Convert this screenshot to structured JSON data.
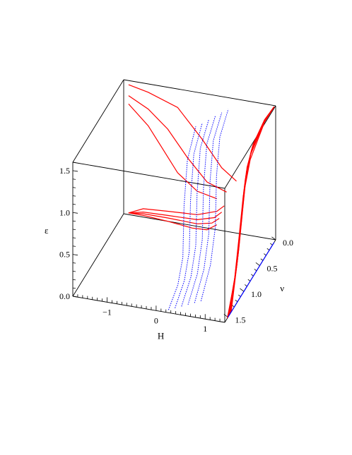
{
  "chart_data": {
    "type": "line",
    "subtype": "3d-curves",
    "title": "",
    "xlabel": "H",
    "ylabel": "ν",
    "zlabel": "ε",
    "xlim": [
      -1.7,
      1.4
    ],
    "ylim": [
      0.0,
      1.6
    ],
    "zlim": [
      0.0,
      1.6
    ],
    "x_ticks": [
      "−1",
      "0",
      "1"
    ],
    "y_ticks": [
      "0.0",
      "0.5",
      "1.0",
      "1.5"
    ],
    "z_ticks": [
      "0.0",
      "0.5",
      "1.0",
      "1.5"
    ],
    "grid": false,
    "series": [
      {
        "projection": "H-ε plane (back wall)",
        "color": "#ff0000",
        "style": "solid",
        "curves": [
          [
            [
              -1.6,
              1.55
            ],
            [
              -1.2,
              1.5
            ],
            [
              -0.6,
              1.38
            ],
            [
              -0.1,
              1.05
            ],
            [
              0.3,
              0.75
            ],
            [
              0.6,
              0.62
            ]
          ],
          [
            [
              -1.6,
              1.42
            ],
            [
              -1.2,
              1.3
            ],
            [
              -0.8,
              1.1
            ],
            [
              -0.4,
              0.8
            ],
            [
              0.0,
              0.55
            ],
            [
              0.4,
              0.47
            ]
          ],
          [
            [
              -1.6,
              1.32
            ],
            [
              -1.2,
              1.1
            ],
            [
              -0.9,
              0.85
            ],
            [
              -0.6,
              0.6
            ],
            [
              -0.2,
              0.42
            ],
            [
              0.2,
              0.37
            ]
          ],
          [
            [
              -1.6,
              0.02
            ],
            [
              -1.3,
              0.1
            ],
            [
              -0.8,
              0.12
            ],
            [
              -0.2,
              0.14
            ],
            [
              0.2,
              0.22
            ],
            [
              0.35,
              0.3
            ]
          ],
          [
            [
              -1.6,
              0.02
            ],
            [
              -1.3,
              0.06
            ],
            [
              -0.8,
              0.07
            ],
            [
              -0.2,
              0.08
            ],
            [
              0.15,
              0.14
            ],
            [
              0.3,
              0.22
            ]
          ],
          [
            [
              -1.6,
              0.02
            ],
            [
              -1.3,
              0.04
            ],
            [
              -0.8,
              0.04
            ],
            [
              -0.2,
              0.03
            ],
            [
              0.1,
              0.07
            ],
            [
              0.25,
              0.14
            ]
          ],
          [
            [
              -1.6,
              0.02
            ],
            [
              -1.3,
              0.02
            ],
            [
              -0.8,
              0.0
            ],
            [
              -0.3,
              -0.03
            ],
            [
              0.0,
              -0.02
            ],
            [
              0.2,
              0.06
            ]
          ]
        ]
      },
      {
        "projection": "ν-ε plane (right wall)",
        "color": "#ff0000",
        "style": "solid",
        "curves": [
          [
            [
              1.52,
              0.0
            ],
            [
              1.3,
              0.3
            ],
            [
              1.15,
              0.75
            ],
            [
              1.02,
              1.15
            ],
            [
              0.8,
              1.45
            ],
            [
              0.35,
              1.62
            ],
            [
              0.05,
              1.62
            ]
          ],
          [
            [
              1.5,
              0.0
            ],
            [
              1.28,
              0.35
            ],
            [
              1.12,
              0.8
            ],
            [
              1.0,
              1.2
            ],
            [
              0.8,
              1.5
            ],
            [
              0.35,
              1.63
            ],
            [
              0.05,
              1.62
            ]
          ],
          [
            [
              1.48,
              0.0
            ],
            [
              1.25,
              0.4
            ],
            [
              1.1,
              0.85
            ],
            [
              0.98,
              1.25
            ],
            [
              0.78,
              1.52
            ],
            [
              0.35,
              1.63
            ],
            [
              0.05,
              1.62
            ]
          ],
          [
            [
              1.46,
              0.0
            ],
            [
              1.22,
              0.45
            ],
            [
              1.08,
              0.9
            ],
            [
              0.96,
              1.3
            ],
            [
              0.76,
              1.54
            ],
            [
              0.35,
              1.64
            ],
            [
              0.05,
              1.62
            ]
          ],
          [
            [
              1.44,
              0.0
            ],
            [
              1.2,
              0.5
            ],
            [
              1.06,
              0.95
            ],
            [
              0.94,
              1.34
            ],
            [
              0.74,
              1.55
            ],
            [
              0.35,
              1.64
            ],
            [
              0.05,
              1.62
            ]
          ],
          [
            [
              1.42,
              0.0
            ],
            [
              1.18,
              0.55
            ],
            [
              1.04,
              1.0
            ],
            [
              0.92,
              1.38
            ],
            [
              0.72,
              1.57
            ],
            [
              0.35,
              1.64
            ],
            [
              0.05,
              1.62
            ]
          ],
          [
            [
              1.4,
              0.0
            ],
            [
              1.16,
              0.6
            ],
            [
              1.02,
              1.05
            ],
            [
              0.9,
              1.42
            ],
            [
              0.7,
              1.58
            ],
            [
              0.35,
              1.65
            ],
            [
              0.05,
              1.62
            ]
          ]
        ]
      },
      {
        "projection": "H-ν plane (floor)",
        "color": "#0000ff",
        "style": "solid",
        "curves": [
          [
            [
              1.4,
              1.5
            ],
            [
              1.4,
              1.3
            ],
            [
              1.4,
              1.1
            ],
            [
              1.4,
              0.95
            ],
            [
              1.4,
              0.8
            ],
            [
              1.4,
              0.6
            ],
            [
              1.4,
              0.35
            ],
            [
              1.4,
              0.15
            ],
            [
              1.4,
              0.05
            ]
          ]
        ]
      },
      {
        "projection": "3D trajectories (interior)",
        "color": "#0000ff",
        "style": "dotted",
        "curves": [
          [
            [
              0.22,
              1.55,
              0.0
            ],
            [
              0.25,
              1.3,
              0.15
            ],
            [
              0.22,
              1.1,
              0.35
            ],
            [
              0.18,
              1.0,
              0.9
            ],
            [
              0.15,
              0.85,
              1.35
            ],
            [
              0.16,
              0.6,
              1.6
            ]
          ],
          [
            [
              0.32,
              1.5,
              0.0
            ],
            [
              0.35,
              1.25,
              0.18
            ],
            [
              0.32,
              1.05,
              0.4
            ],
            [
              0.28,
              0.95,
              0.95
            ],
            [
              0.25,
              0.8,
              1.4
            ],
            [
              0.26,
              0.55,
              1.62
            ]
          ],
          [
            [
              0.42,
              1.45,
              0.0
            ],
            [
              0.45,
              1.2,
              0.2
            ],
            [
              0.42,
              1.0,
              0.45
            ],
            [
              0.38,
              0.9,
              1.0
            ],
            [
              0.35,
              0.75,
              1.45
            ],
            [
              0.36,
              0.5,
              1.64
            ]
          ],
          [
            [
              0.52,
              1.4,
              0.0
            ],
            [
              0.55,
              1.15,
              0.22
            ],
            [
              0.52,
              0.95,
              0.5
            ],
            [
              0.48,
              0.85,
              1.05
            ],
            [
              0.45,
              0.7,
              1.48
            ],
            [
              0.46,
              0.45,
              1.66
            ]
          ],
          [
            [
              0.62,
              1.35,
              0.0
            ],
            [
              0.65,
              1.1,
              0.25
            ],
            [
              0.62,
              0.9,
              0.55
            ],
            [
              0.58,
              0.8,
              1.1
            ],
            [
              0.55,
              0.65,
              1.5
            ],
            [
              0.56,
              0.4,
              1.68
            ]
          ],
          [
            [
              0.72,
              1.3,
              0.0
            ],
            [
              0.75,
              1.05,
              0.28
            ],
            [
              0.72,
              0.85,
              0.6
            ],
            [
              0.68,
              0.75,
              1.15
            ],
            [
              0.65,
              0.6,
              1.52
            ],
            [
              0.66,
              0.35,
              1.7
            ]
          ]
        ]
      }
    ]
  }
}
